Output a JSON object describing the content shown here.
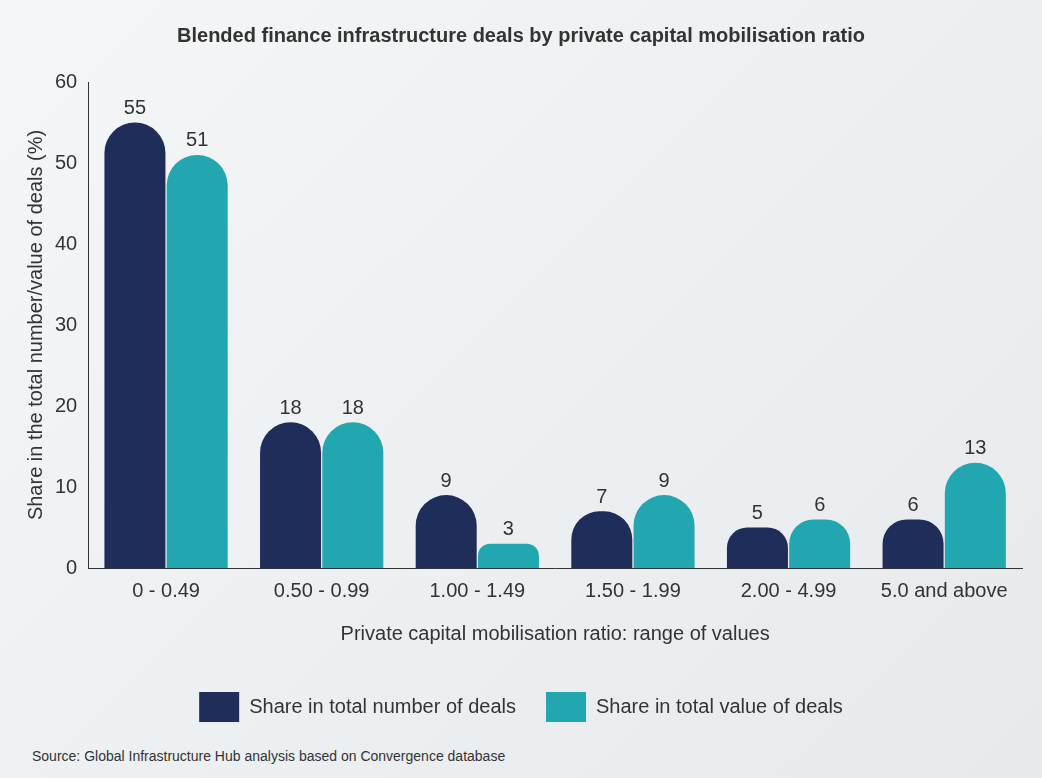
{
  "chart_data": {
    "type": "bar",
    "title": "Blended finance infrastructure deals by private capital mobilisation ratio",
    "x_label": "Private capital mobilisation ratio: range of values",
    "y_label": "Share in the total number/value of deals (%)",
    "categories": [
      "0 - 0.49",
      "0.50 - 0.99",
      "1.00 - 1.49",
      "1.50 - 1.99",
      "2.00 - 4.99",
      "5.0 and above"
    ],
    "series": [
      {
        "name": "Share in total number of deals",
        "color": "#1e2d5a",
        "values": [
          55,
          18,
          9,
          7,
          5,
          6
        ]
      },
      {
        "name": "Share in total value of deals",
        "color": "#22a7b0",
        "values": [
          51,
          18,
          3,
          9,
          6,
          13
        ]
      }
    ],
    "ylim": [
      0,
      60
    ],
    "yticks": [
      0,
      10,
      20,
      30,
      40,
      50,
      60
    ],
    "grid": false,
    "legend": "bottom",
    "data_labels": true,
    "source": "Source: Global Infrastructure Hub analysis based on Convergence database"
  }
}
